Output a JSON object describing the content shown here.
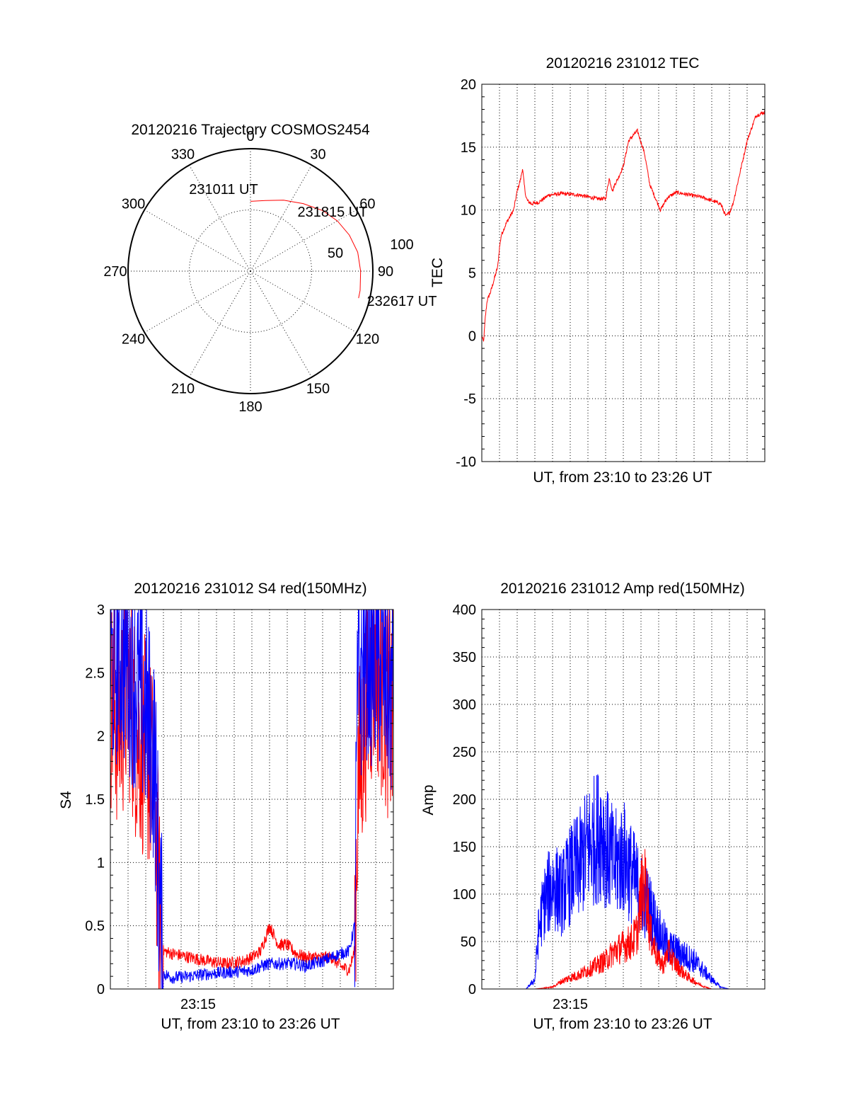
{
  "colors": {
    "red": "#ff0000",
    "blue": "#0000ff",
    "black": "#000000"
  },
  "polar": {
    "title": "20120216 Trajectory COSMOS2454",
    "angle_labels": [
      "0",
      "30",
      "60",
      "90",
      "120",
      "150",
      "180",
      "210",
      "240",
      "270",
      "300",
      "330"
    ],
    "radial_labels": [
      "50",
      "100"
    ],
    "time_labels": {
      "start": "231011 UT",
      "mid": "231815 UT",
      "end": "232617 UT"
    },
    "chart_data": {
      "type": "polar",
      "title": "20120216 Trajectory COSMOS2454",
      "theta_ticks_deg": [
        0,
        30,
        60,
        90,
        120,
        150,
        180,
        210,
        240,
        270,
        300,
        330
      ],
      "r_ticks": [
        50,
        100
      ],
      "r_range": [
        0,
        100
      ],
      "series": [
        {
          "color": "red",
          "points": [
            {
              "az": 0,
              "zen": 57
            },
            {
              "az": 12,
              "zen": 59
            },
            {
              "az": 25,
              "zen": 64
            },
            {
              "az": 38,
              "zen": 70
            },
            {
              "az": 50,
              "zen": 77
            },
            {
              "az": 60,
              "zen": 82
            },
            {
              "az": 70,
              "zen": 86
            },
            {
              "az": 80,
              "zen": 89
            },
            {
              "az": 90,
              "zen": 90
            },
            {
              "az": 100,
              "zen": 91
            },
            {
              "az": 104,
              "zen": 91
            }
          ]
        }
      ]
    }
  },
  "tec": {
    "title": "20120216 231012 TEC",
    "ylabel": "TEC",
    "xlabel": "UT, from 23:10 to 23:26 UT",
    "ytick_labels": [
      "20",
      "15",
      "10",
      "5",
      "0",
      "-5",
      "-10"
    ],
    "chart_data": {
      "type": "line",
      "title": "20120216 231012 TEC",
      "xlabel": "UT, from 23:10 to 23:26 UT",
      "ylabel": "TEC",
      "xlim": [
        0,
        16
      ],
      "ylim": [
        -10,
        20
      ],
      "grid": true,
      "series": [
        {
          "color": "red",
          "x": [
            0,
            0.1,
            0.2,
            0.3,
            0.5,
            0.7,
            0.9,
            1.0,
            1.1,
            1.4,
            1.6,
            1.8,
            2.0,
            2.2,
            2.3,
            2.4,
            2.5,
            2.6,
            2.8,
            3.2,
            3.8,
            4.5,
            5.5,
            6.5,
            7.0,
            7.2,
            7.4,
            7.5,
            7.7,
            8.0,
            8.3,
            8.6,
            8.8,
            9.2,
            9.5,
            10.1,
            10.5,
            11.0,
            12.5,
            13.5,
            13.8,
            14.0,
            14.2,
            14.6,
            15.0,
            15.5,
            16.0
          ],
          "y": [
            0,
            -0.5,
            1.5,
            2.8,
            3.5,
            4.5,
            5.5,
            7,
            8,
            9,
            9.5,
            10,
            11.5,
            12.5,
            13.3,
            12,
            11,
            10.7,
            10.5,
            10.6,
            11.2,
            11.3,
            11.2,
            10.9,
            10.9,
            12.5,
            11.5,
            12,
            12.5,
            13.5,
            15.5,
            16,
            16.3,
            14.5,
            12,
            10,
            11,
            11.4,
            11,
            10.5,
            9.5,
            9.8,
            10.5,
            13,
            15.5,
            17.5,
            17.8
          ]
        }
      ]
    }
  },
  "s4": {
    "title": "20120216 231012 S4 red(150MHz)",
    "ylabel": "S4",
    "xlabel": "UT, from 23:10 to 23:26 UT",
    "xtick_label": "23:15",
    "ytick_labels": [
      "3",
      "2.5",
      "2",
      "1.5",
      "1",
      "0.5",
      "0"
    ],
    "chart_data": {
      "type": "line",
      "title": "20120216 231012 S4 red(150MHz)",
      "xlabel": "UT, from 23:10 to 23:26 UT",
      "ylabel": "S4",
      "xlim": [
        0,
        16
      ],
      "ylim": [
        0,
        3
      ],
      "xtick_labels": [
        "23:15"
      ],
      "grid": true,
      "series": [
        {
          "color": "red",
          "x": [
            0,
            0.5,
            1.0,
            1.5,
            2.0,
            2.5,
            2.8,
            3.0,
            3.5,
            4.5,
            5.5,
            6.5,
            7.5,
            8.0,
            8.5,
            9.0,
            9.5,
            10.0,
            10.5,
            11.0,
            11.5,
            12.0,
            12.5,
            13.0,
            13.5,
            13.8,
            14.0,
            14.5,
            15.0,
            15.5,
            16.0
          ],
          "y": [
            2.3,
            2.1,
            2.4,
            2.0,
            1.9,
            1.6,
            0.5,
            0.3,
            0.28,
            0.25,
            0.22,
            0.2,
            0.22,
            0.25,
            0.3,
            0.5,
            0.35,
            0.35,
            0.28,
            0.25,
            0.25,
            0.25,
            0.25,
            0.18,
            0.15,
            0.3,
            1.6,
            2.3,
            2.6,
            2.3,
            2.1
          ]
        },
        {
          "color": "blue",
          "x": [
            0,
            0.5,
            1.0,
            1.5,
            2.0,
            2.5,
            2.8,
            3.0,
            3.5,
            4.5,
            5.5,
            6.5,
            7.5,
            8.0,
            8.5,
            9.0,
            9.5,
            10.0,
            10.5,
            11.0,
            11.5,
            12.0,
            12.5,
            13.0,
            13.5,
            13.8,
            14.0,
            14.5,
            15.0,
            15.5,
            16.0
          ],
          "y": [
            2.5,
            2.7,
            2.6,
            2.4,
            2.2,
            1.8,
            0.6,
            0.12,
            0.09,
            0.1,
            0.12,
            0.13,
            0.14,
            0.15,
            0.18,
            0.2,
            0.2,
            0.2,
            0.2,
            0.18,
            0.2,
            0.22,
            0.25,
            0.28,
            0.3,
            0.5,
            2.4,
            2.7,
            2.6,
            2.5,
            2.3
          ]
        }
      ]
    }
  },
  "amp": {
    "title": "20120216 231012 Amp red(150MHz)",
    "ylabel": "Amp",
    "xlabel": "UT, from 23:10 to 23:26 UT",
    "xtick_label": "23:15",
    "ytick_labels": [
      "400",
      "350",
      "300",
      "250",
      "200",
      "150",
      "100",
      "50",
      "0"
    ],
    "chart_data": {
      "type": "line",
      "title": "20120216 231012 Amp red(150MHz)",
      "xlabel": "UT, from 23:10 to 23:26 UT",
      "ylabel": "Amp",
      "xlim": [
        0,
        16
      ],
      "ylim": [
        0,
        400
      ],
      "xtick_labels": [
        "23:15"
      ],
      "grid": true,
      "series": [
        {
          "color": "blue",
          "x": [
            0,
            1.5,
            2.5,
            3.0,
            3.2,
            3.5,
            4.0,
            4.5,
            5.0,
            5.5,
            6.0,
            6.5,
            6.8,
            7.0,
            7.5,
            8.0,
            8.5,
            9.0,
            9.5,
            10.0,
            10.5,
            11.0,
            11.5,
            12.0,
            12.5,
            13.0,
            13.5,
            14.0,
            16.0
          ],
          "y": [
            0,
            0,
            0,
            10,
            60,
            90,
            110,
            100,
            120,
            130,
            150,
            160,
            170,
            150,
            130,
            140,
            120,
            100,
            85,
            60,
            45,
            40,
            35,
            30,
            20,
            10,
            2,
            0,
            0
          ]
        },
        {
          "color": "red",
          "x": [
            0,
            3.0,
            4.0,
            4.5,
            5.0,
            5.5,
            6.0,
            6.5,
            7.0,
            7.5,
            8.0,
            8.5,
            8.8,
            9.0,
            9.3,
            9.5,
            10.0,
            10.3,
            10.5,
            11.0,
            11.5,
            12.0,
            12.5,
            13.0,
            16.0
          ],
          "y": [
            0,
            0,
            2,
            8,
            12,
            15,
            20,
            25,
            30,
            40,
            45,
            50,
            60,
            100,
            110,
            60,
            30,
            25,
            40,
            25,
            15,
            8,
            3,
            0,
            0
          ]
        }
      ]
    }
  }
}
